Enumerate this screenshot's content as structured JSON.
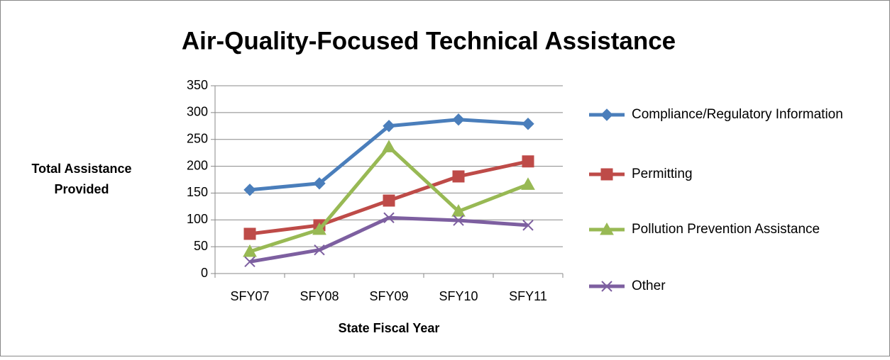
{
  "chart_data": {
    "type": "line",
    "title": "Air-Quality-Focused Technical Assistance",
    "x_label": "State Fiscal Year",
    "y_label": "Total Assistance Provided",
    "categories": [
      "SFY07",
      "SFY08",
      "SFY09",
      "SFY10",
      "SFY11"
    ],
    "series": [
      {
        "name": "Compliance/Regulatory Information",
        "color": "#4a7ebb",
        "values": [
          156,
          168,
          275,
          287,
          279
        ]
      },
      {
        "name": "Permitting",
        "color": "#be4b48",
        "values": [
          74,
          90,
          136,
          181,
          209
        ]
      },
      {
        "name": "Pollution Prevention Assistance",
        "color": "#98b954",
        "values": [
          41,
          82,
          236,
          116,
          166
        ]
      },
      {
        "name": "Other",
        "color": "#7d5fa0",
        "values": [
          22,
          44,
          104,
          99,
          90
        ]
      }
    ],
    "ylim": [
      0,
      350
    ],
    "yticks": [
      0,
      50,
      100,
      150,
      200,
      250,
      300,
      350
    ],
    "grid": true,
    "legend": "right"
  }
}
